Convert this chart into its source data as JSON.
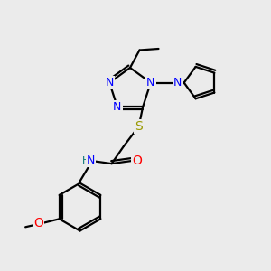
{
  "background_color": "#ebebeb",
  "atom_colors": {
    "N": "#0000ff",
    "O": "#ff0000",
    "S": "#999900",
    "H": "#007070",
    "C": "#000000"
  },
  "bond_color": "#000000",
  "figsize": [
    3.0,
    3.0
  ],
  "dpi": 100,
  "lw": 1.6,
  "fs": 9
}
